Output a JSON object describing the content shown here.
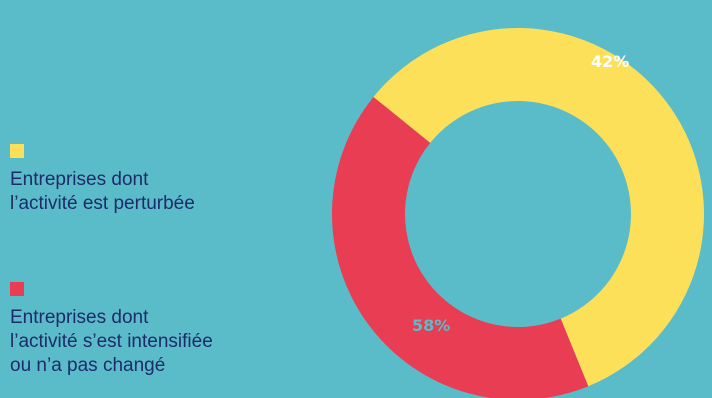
{
  "chart_data": {
    "type": "pie",
    "title": "",
    "donut": true,
    "start_angle_deg": -51,
    "slices": [
      {
        "label": "Entreprises dont\nl’activité est perturbée",
        "value": 58,
        "display": "58%",
        "color": "#fde05a",
        "label_color": "#5bbcc9"
      },
      {
        "label": "Entreprises dont\nl’activité s’est intensifiée\nou n’a pas changé",
        "value": 42,
        "display": "42%",
        "color": "#e93d54",
        "label_color": "#ffffff"
      }
    ],
    "legend_position": "left"
  }
}
